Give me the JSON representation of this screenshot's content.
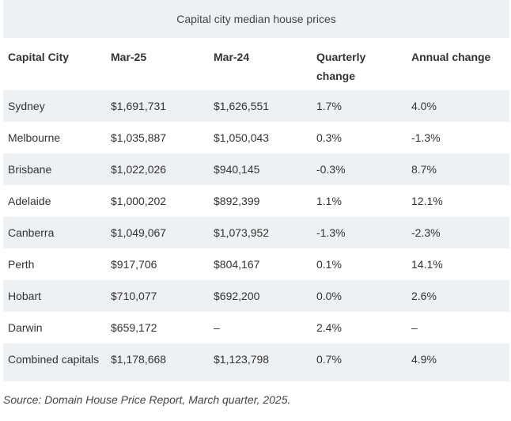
{
  "caption": "Capital city median house prices",
  "headers": [
    "Capital City",
    "Mar-25",
    "Mar-24",
    "Quarterly change",
    "Annual change"
  ],
  "rows": [
    [
      "Sydney",
      "$1,691,731",
      "$1,626,551",
      "1.7%",
      "4.0%"
    ],
    [
      "Melbourne",
      "$1,035,887",
      "$1,050,043",
      "0.3%",
      "-1.3%"
    ],
    [
      "Brisbane",
      "$1,022,026",
      "$940,145",
      "-0.3%",
      "8.7%"
    ],
    [
      "Adelaide",
      "$1,000,202",
      "$892,399",
      "1.1%",
      "12.1%"
    ],
    [
      "Canberra",
      "$1,049,067",
      "$1,073,952",
      "-1.3%",
      "-2.3%"
    ],
    [
      "Perth",
      "$917,706",
      "$804,167",
      "0.1%",
      "14.1%"
    ],
    [
      "Hobart",
      "$710,077",
      "$692,200",
      "0.0%",
      "2.6%"
    ],
    [
      "Darwin",
      "$659,172",
      "–",
      "2.4%",
      "–"
    ],
    [
      "Combined capitals",
      "$1,178,668",
      "$1,123,798",
      "0.7%",
      "4.9%"
    ]
  ],
  "source": "Source: Domain House Price Report, March quarter, 2025."
}
